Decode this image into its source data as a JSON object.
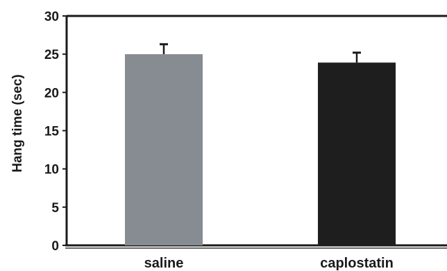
{
  "chart_data": {
    "type": "bar",
    "title": "",
    "xlabel": "",
    "ylabel": "Hang time (sec)",
    "ylim": [
      0,
      30
    ],
    "yticks": [
      0,
      5,
      10,
      15,
      20,
      25,
      30
    ],
    "grid": false,
    "categories": [
      "saline",
      "caplostatin"
    ],
    "values": [
      25.0,
      23.9
    ],
    "errors": [
      1.3,
      1.3
    ],
    "colors": [
      "#878c92",
      "#1e1e1e"
    ]
  }
}
